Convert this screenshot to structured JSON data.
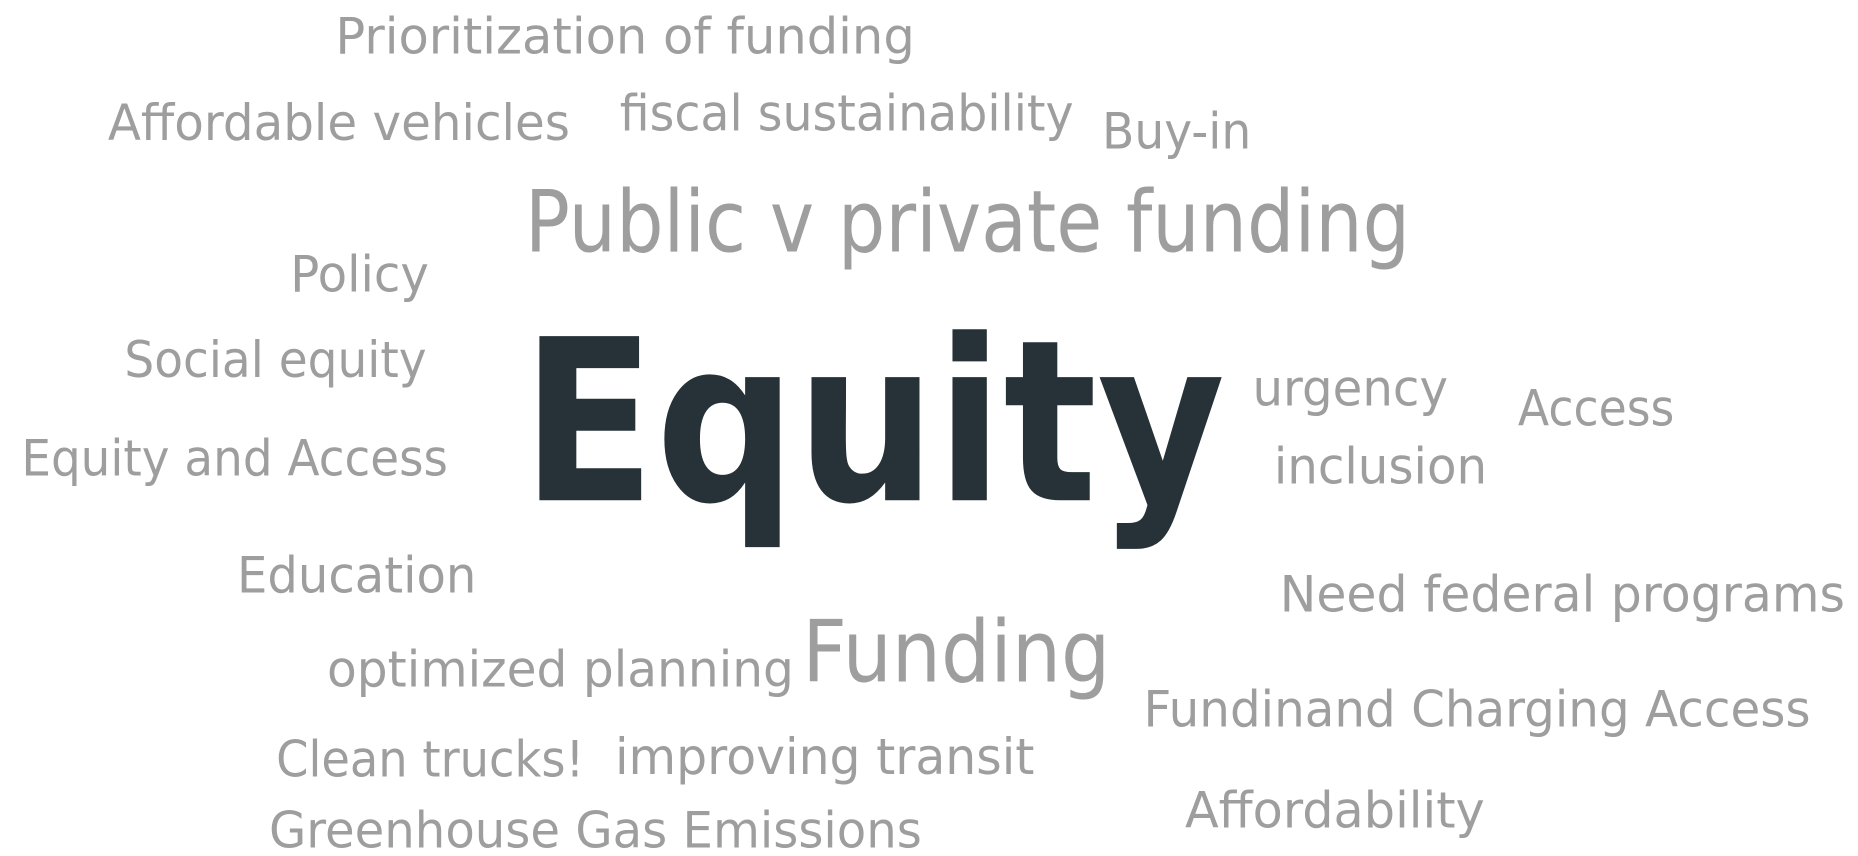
{
  "words": [
    {
      "text": "Prioritization of funding"
    },
    {
      "text": "Affordable vehicles"
    },
    {
      "text": "fiscal sustainability"
    },
    {
      "text": "Buy-in"
    },
    {
      "text": "Public v private funding"
    },
    {
      "text": "Policy"
    },
    {
      "text": "Social equity"
    },
    {
      "text": "urgency"
    },
    {
      "text": "Access"
    },
    {
      "text": "Equity"
    },
    {
      "text": "Equity and Access"
    },
    {
      "text": "inclusion"
    },
    {
      "text": "Education"
    },
    {
      "text": "Need federal programs"
    },
    {
      "text": "optimized planning"
    },
    {
      "text": "Funding"
    },
    {
      "text": "Fundinand Charging Access"
    },
    {
      "text": "Clean trucks!"
    },
    {
      "text": "improving transit"
    },
    {
      "text": "Affordability"
    },
    {
      "text": "Greenhouse Gas Emissions"
    }
  ]
}
